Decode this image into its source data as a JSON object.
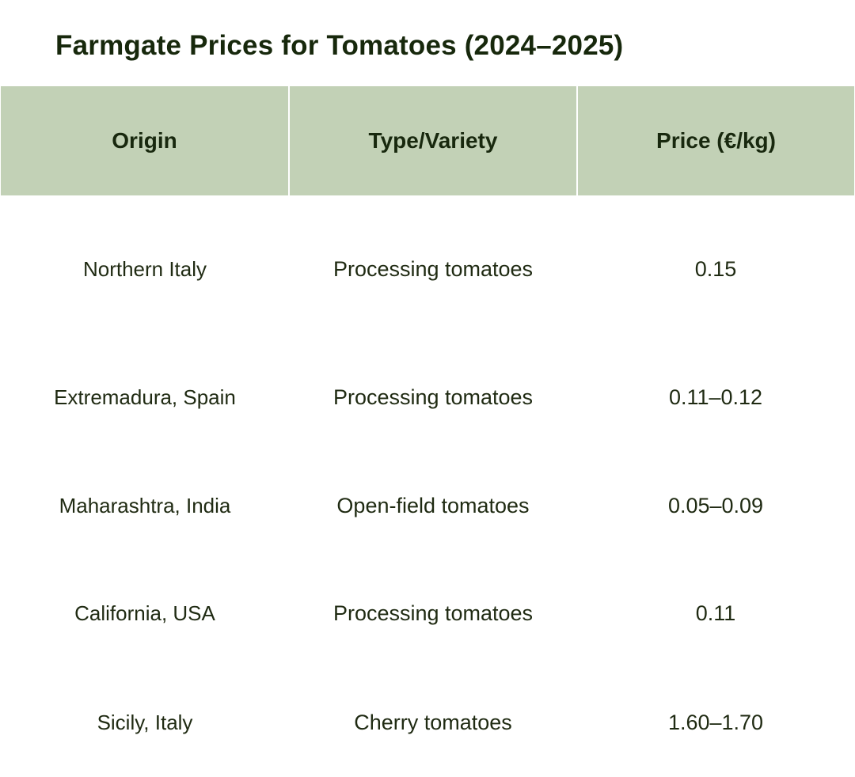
{
  "title": "Farmgate Prices for Tomatoes (2024–2025)",
  "table": {
    "headers": [
      "Origin",
      "Type/Variety",
      "Price (€/kg)"
    ],
    "rows": [
      {
        "origin": "Northern Italy",
        "variety": "Processing tomatoes",
        "price": "0.15"
      },
      {
        "origin": "Extremadura, Spain",
        "variety": "Processing tomatoes",
        "price": "0.11–0.12"
      },
      {
        "origin": "Maharashtra, India",
        "variety": "Open-field tomatoes",
        "price": "0.05–0.09"
      },
      {
        "origin": "California, USA",
        "variety": "Processing tomatoes",
        "price": "0.11"
      },
      {
        "origin": "Sicily, Italy",
        "variety": "Cherry tomatoes",
        "price": "1.60–1.70"
      }
    ]
  },
  "colors": {
    "header_background": "#c2d1b6",
    "title_text": "#17280c",
    "body_text": "#1f2a12"
  }
}
